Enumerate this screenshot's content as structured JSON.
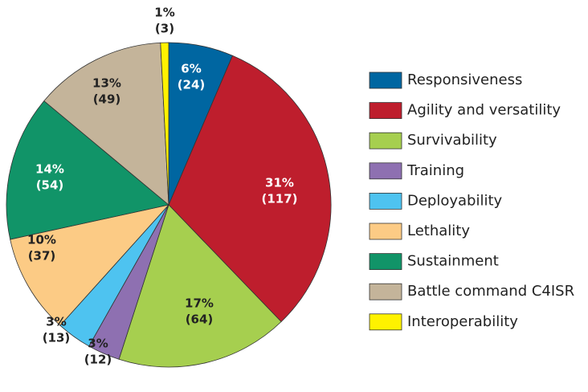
{
  "chart_data": {
    "type": "pie",
    "categories": [
      "Responsiveness",
      "Agility and versatility",
      "Survivability",
      "Training",
      "Deployability",
      "Lethality",
      "Sustainment",
      "Battle command C4ISR",
      "Interoperability"
    ],
    "values": [
      24,
      117,
      64,
      12,
      13,
      37,
      54,
      49,
      3
    ],
    "value_labels": [
      "(24)",
      "(117)",
      "(64)",
      "(12)",
      "(13)",
      "(37)",
      "(54)",
      "(49)",
      "(3)"
    ],
    "percent_labels": [
      "6%",
      "31%",
      "17%",
      "3%",
      "3%",
      "10%",
      "14%",
      "13%",
      "1%"
    ],
    "colors": [
      "#0066a1",
      "#be1e2d",
      "#a6cf4f",
      "#8e70b1",
      "#4ec3f0",
      "#fccb85",
      "#119468",
      "#c4b49a",
      "#fff200"
    ],
    "legend": "right"
  }
}
